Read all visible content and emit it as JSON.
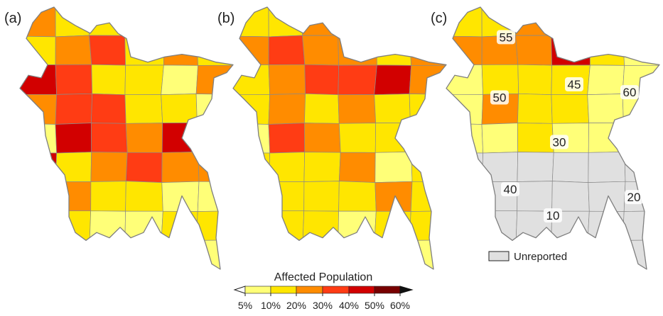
{
  "panels": [
    {
      "label": "(a)",
      "districts": [
        [
          0,
          2
        ],
        [
          1,
          1
        ],
        [
          2,
          1
        ],
        [
          3,
          2
        ],
        [
          4,
          0
        ],
        [
          5,
          0
        ],
        [
          6,
          1
        ],
        [
          7,
          2
        ],
        [
          8,
          3
        ],
        [
          9,
          1
        ],
        [
          10,
          2
        ],
        [
          11,
          1
        ],
        [
          12,
          4
        ],
        [
          13,
          3
        ],
        [
          14,
          1
        ],
        [
          15,
          1
        ],
        [
          16,
          0
        ],
        [
          17,
          2
        ],
        [
          18,
          2
        ],
        [
          19,
          3
        ],
        [
          20,
          3
        ],
        [
          21,
          1
        ],
        [
          22,
          1
        ],
        [
          23,
          0
        ],
        [
          24,
          0
        ],
        [
          25,
          4
        ],
        [
          26,
          3
        ],
        [
          27,
          2
        ],
        [
          28,
          4
        ],
        [
          29,
          2
        ],
        [
          30,
          4
        ],
        [
          31,
          1
        ],
        [
          32,
          2
        ],
        [
          33,
          3
        ],
        [
          34,
          2
        ],
        [
          35,
          2
        ],
        [
          36,
          2
        ],
        [
          37,
          2
        ],
        [
          38,
          1
        ],
        [
          39,
          1
        ],
        [
          40,
          0
        ],
        [
          41,
          0
        ],
        [
          42,
          0
        ],
        [
          43,
          1
        ],
        [
          44,
          0
        ],
        [
          45,
          0
        ],
        [
          46,
          1
        ],
        [
          47,
          1
        ],
        [
          48,
          1
        ],
        [
          49,
          0
        ],
        [
          50,
          0
        ],
        [
          51,
          0
        ],
        [
          52,
          1
        ],
        [
          53,
          0
        ]
      ]
    },
    {
      "label": "(b)",
      "districts": [
        [
          0,
          1
        ],
        [
          1,
          1
        ],
        [
          2,
          2
        ],
        [
          3,
          3
        ],
        [
          4,
          1
        ],
        [
          5,
          0
        ],
        [
          6,
          2
        ],
        [
          7,
          3
        ],
        [
          8,
          2
        ],
        [
          9,
          2
        ],
        [
          10,
          1
        ],
        [
          11,
          2
        ],
        [
          12,
          1
        ],
        [
          13,
          2
        ],
        [
          14,
          3
        ],
        [
          15,
          3
        ],
        [
          16,
          4
        ],
        [
          17,
          2
        ],
        [
          18,
          1
        ],
        [
          19,
          2
        ],
        [
          20,
          1
        ],
        [
          21,
          2
        ],
        [
          22,
          1
        ],
        [
          23,
          1
        ],
        [
          24,
          0
        ],
        [
          25,
          3
        ],
        [
          26,
          2
        ],
        [
          27,
          1
        ],
        [
          28,
          1
        ],
        [
          29,
          1
        ],
        [
          30,
          1
        ],
        [
          31,
          1
        ],
        [
          32,
          1
        ],
        [
          33,
          2
        ],
        [
          34,
          0
        ],
        [
          35,
          1
        ],
        [
          36,
          1
        ],
        [
          37,
          1
        ],
        [
          38,
          1
        ],
        [
          39,
          1
        ],
        [
          40,
          2
        ],
        [
          41,
          1
        ],
        [
          42,
          1
        ],
        [
          43,
          1
        ],
        [
          44,
          1
        ],
        [
          45,
          0
        ],
        [
          46,
          1
        ],
        [
          47,
          1
        ],
        [
          48,
          1
        ],
        [
          49,
          0
        ],
        [
          50,
          0
        ],
        [
          51,
          0
        ],
        [
          52,
          1
        ],
        [
          53,
          0
        ]
      ]
    },
    {
      "label": "(c)",
      "districts": [
        [
          0,
          1
        ],
        [
          1,
          1
        ],
        [
          2,
          2
        ],
        [
          3,
          2
        ],
        [
          4,
          1
        ],
        [
          5,
          4
        ],
        [
          6,
          2
        ],
        [
          7,
          2
        ],
        [
          8,
          2
        ],
        [
          9,
          4
        ],
        [
          10,
          1
        ],
        [
          11,
          0
        ],
        [
          12,
          0
        ],
        [
          13,
          1
        ],
        [
          14,
          1
        ],
        [
          15,
          1
        ],
        [
          16,
          0
        ],
        [
          17,
          0
        ],
        [
          18,
          0
        ],
        [
          19,
          2
        ],
        [
          20,
          1
        ],
        [
          21,
          1
        ],
        [
          22,
          0
        ],
        [
          23,
          0
        ],
        [
          24,
          0
        ],
        [
          25,
          0
        ],
        [
          26,
          1
        ],
        [
          27,
          0
        ],
        [
          28,
          0
        ],
        [
          29,
          -1
        ],
        [
          30,
          -1
        ],
        [
          31,
          -1
        ],
        [
          32,
          -1
        ],
        [
          33,
          -1
        ],
        [
          34,
          -1
        ],
        [
          35,
          -1
        ],
        [
          36,
          -1
        ],
        [
          37,
          -1
        ],
        [
          38,
          -1
        ],
        [
          39,
          -1
        ],
        [
          40,
          -1
        ],
        [
          41,
          -1
        ],
        [
          42,
          -1
        ],
        [
          43,
          -1
        ],
        [
          44,
          -1
        ],
        [
          45,
          -1
        ],
        [
          46,
          -1
        ],
        [
          47,
          -1
        ],
        [
          48,
          -1
        ],
        [
          49,
          -1
        ],
        [
          50,
          -1
        ],
        [
          51,
          -1
        ],
        [
          52,
          1
        ],
        [
          53,
          -1
        ]
      ],
      "numbers": [
        {
          "text": "55",
          "ux": 0.28,
          "uy": 0.12
        },
        {
          "text": "45",
          "ux": 0.6,
          "uy": 0.3
        },
        {
          "text": "60",
          "ux": 0.86,
          "uy": 0.33
        },
        {
          "text": "50",
          "ux": 0.25,
          "uy": 0.35
        },
        {
          "text": "30",
          "ux": 0.53,
          "uy": 0.52
        },
        {
          "text": "40",
          "ux": 0.3,
          "uy": 0.7
        },
        {
          "text": "20",
          "ux": 0.88,
          "uy": 0.73
        },
        {
          "text": "10",
          "ux": 0.5,
          "uy": 0.8
        }
      ]
    }
  ],
  "colorbar": {
    "title": "Affected Population",
    "ticks": [
      "5%",
      "10%",
      "20%",
      "30%",
      "40%",
      "50%",
      "60%"
    ],
    "colors": [
      "#ffff78",
      "#ffe600",
      "#ff8c00",
      "#ff3c14",
      "#d20000",
      "#780000"
    ]
  },
  "legend": {
    "label": "Unreported",
    "color": "#e0e0e0"
  }
}
